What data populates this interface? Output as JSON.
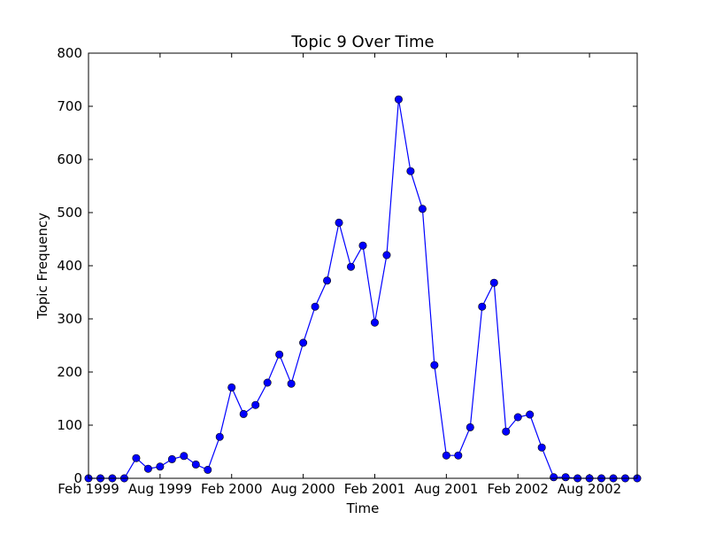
{
  "chart_data": {
    "type": "line",
    "title": "Topic 9 Over Time",
    "xlabel": "Time",
    "ylabel": "Topic Frequency",
    "ylim": [
      0,
      800
    ],
    "yticks": [
      "0",
      "100",
      "200",
      "300",
      "400",
      "500",
      "600",
      "700",
      "800"
    ],
    "xticks": [
      "Feb 1999",
      "Aug 1999",
      "Feb 2000",
      "Aug 2000",
      "Feb 2001",
      "Aug 2001",
      "Feb 2002",
      "Aug 2002"
    ],
    "x_unit": "month",
    "x_start": "1999-02",
    "x_end": "2002-12",
    "grid": false,
    "legend": false,
    "series_color": "#0000ff",
    "series": [
      {
        "x": [
          "1999-02",
          "1999-03",
          "1999-04",
          "1999-05",
          "1999-06",
          "1999-07",
          "1999-08",
          "1999-09",
          "1999-10",
          "1999-11",
          "1999-12",
          "2000-01",
          "2000-02",
          "2000-03",
          "2000-04",
          "2000-05",
          "2000-06",
          "2000-07",
          "2000-08",
          "2000-09",
          "2000-10",
          "2000-11",
          "2000-12",
          "2001-01",
          "2001-02",
          "2001-03",
          "2001-04",
          "2001-05",
          "2001-06",
          "2001-07",
          "2001-08",
          "2001-09",
          "2001-10",
          "2001-11",
          "2001-12",
          "2002-01",
          "2002-02",
          "2002-03",
          "2002-04",
          "2002-05",
          "2002-06",
          "2002-07",
          "2002-08",
          "2002-09",
          "2002-10",
          "2002-11",
          "2002-12"
        ],
        "values": [
          0,
          0,
          0,
          0,
          38,
          18,
          22,
          36,
          42,
          26,
          16,
          78,
          171,
          121,
          138,
          180,
          233,
          178,
          255,
          323,
          372,
          481,
          398,
          438,
          293,
          420,
          713,
          578,
          507,
          213,
          43,
          43,
          96,
          323,
          368,
          88,
          115,
          120,
          58,
          2,
          2,
          0,
          0,
          0,
          0,
          0,
          0
        ]
      }
    ]
  }
}
